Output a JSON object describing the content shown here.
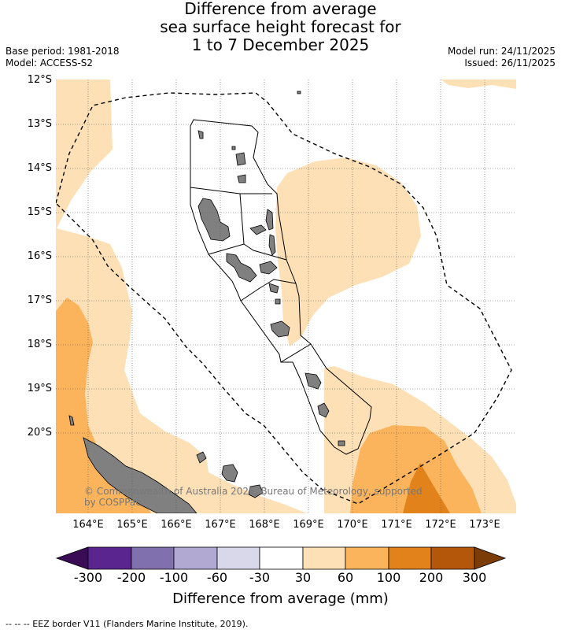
{
  "title": {
    "line1": "Difference from average",
    "line2": "sea surface height forecast for",
    "line3": "1 to 7 December 2025"
  },
  "meta": {
    "base_period": "Base period: 1981-2018",
    "model": "Model: ACCESS-S2",
    "model_run": "Model run: 24/11/2025",
    "issued": "Issued: 26/11/2025"
  },
  "axes": {
    "lat_labels": [
      "12°S",
      "13°S",
      "14°S",
      "15°S",
      "16°S",
      "17°S",
      "18°S",
      "19°S",
      "20°S"
    ],
    "lon_labels": [
      "164°E",
      "165°E",
      "166°E",
      "167°E",
      "168°E",
      "169°E",
      "170°E",
      "171°E",
      "172°E",
      "173°E"
    ]
  },
  "copyright": {
    "line1": "© Commonwealth of Australia 2025, Bureau of Meteorology, supported",
    "line2": "by COSPPac"
  },
  "colorbar": {
    "ticks": [
      "-300",
      "-200",
      "-100",
      "-60",
      "-30",
      "30",
      "60",
      "100",
      "200",
      "300"
    ],
    "colors": {
      "under": "#3a0c56",
      "b1": "#5b2590",
      "b2": "#8071ae",
      "b3": "#b1a9d1",
      "b4": "#d9d8eb",
      "b5": "#ffffff",
      "b6": "#fde0b6",
      "b7": "#fbb45c",
      "b8": "#e1831a",
      "b9": "#b4570b",
      "over": "#7c3c08"
    },
    "title": "Difference from average (mm)"
  },
  "map_colors": {
    "land": "#808080",
    "light_orange": "#fde0b6",
    "orange": "#fbb45c",
    "dark_orange": "#e1831a"
  },
  "footer": "--  --  -- EEZ border V11 (Flanders Marine Institute, 2019)."
}
